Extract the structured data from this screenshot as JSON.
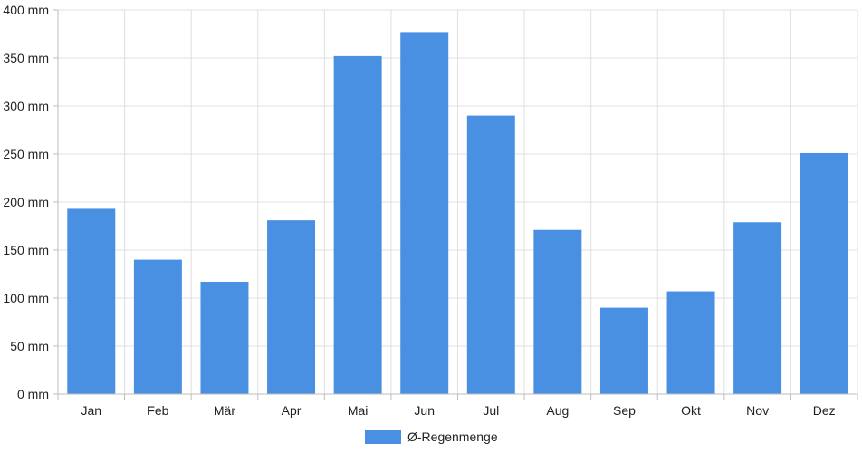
{
  "chart_data": {
    "type": "bar",
    "categories": [
      "Jan",
      "Feb",
      "Mär",
      "Apr",
      "Mai",
      "Jun",
      "Jul",
      "Aug",
      "Sep",
      "Okt",
      "Nov",
      "Dez"
    ],
    "series": [
      {
        "name": "Ø-Regenmenge",
        "values": [
          193,
          140,
          117,
          181,
          352,
          377,
          290,
          171,
          90,
          107,
          179,
          251
        ],
        "color": "#4a90e2"
      }
    ],
    "y_unit_suffix": " mm",
    "ylim": [
      0,
      400
    ],
    "y_ticks": [
      0,
      50,
      100,
      150,
      200,
      250,
      300,
      350,
      400
    ],
    "grid": true,
    "legend_position": "bottom-center",
    "colors": {
      "grid": "#e0e0e0",
      "axis": "#bdbdbd",
      "bar": "#4a90e2",
      "text": "#222222"
    }
  }
}
